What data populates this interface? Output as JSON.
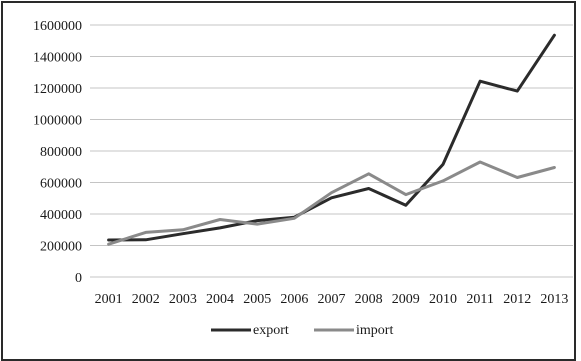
{
  "chart_data": {
    "type": "line",
    "title": "",
    "xlabel": "",
    "ylabel": "",
    "categories": [
      "2001",
      "2002",
      "2003",
      "2004",
      "2005",
      "2006",
      "2007",
      "2008",
      "2009",
      "2010",
      "2011",
      "2012",
      "2013"
    ],
    "ylim": [
      0,
      1600000
    ],
    "yticks": [
      "0",
      "200000",
      "400000",
      "600000",
      "800000",
      "1000000",
      "1200000",
      "1400000",
      "1600000"
    ],
    "grid": "horizontal",
    "legend_position": "bottom",
    "series": [
      {
        "name": "export",
        "color": "#2b2b2b",
        "values": [
          235000,
          236000,
          275000,
          312000,
          358000,
          380000,
          503000,
          562000,
          455000,
          715000,
          1243000,
          1180000,
          1535000
        ]
      },
      {
        "name": "import",
        "color": "#8a8a8a",
        "values": [
          208000,
          283000,
          300000,
          365000,
          336000,
          373000,
          535000,
          655000,
          523000,
          610000,
          730000,
          632000,
          695000
        ]
      }
    ]
  }
}
